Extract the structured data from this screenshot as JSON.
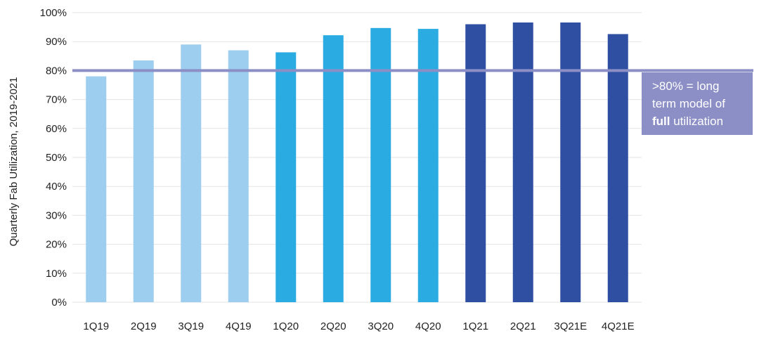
{
  "chart_data": {
    "type": "bar",
    "categories": [
      "1Q19",
      "2Q19",
      "3Q19",
      "4Q19",
      "1Q20",
      "2Q20",
      "3Q20",
      "4Q20",
      "1Q21",
      "2Q21",
      "3Q21E",
      "4Q21E"
    ],
    "values": [
      78,
      83.5,
      89,
      87,
      86.3,
      92.2,
      94.7,
      94.4,
      96,
      96.6,
      96.6,
      92.6
    ],
    "bar_colors": [
      "#9dcef0",
      "#9dcef0",
      "#9dcef0",
      "#9dcef0",
      "#2aace2",
      "#2aace2",
      "#2aace2",
      "#2aace2",
      "#2f4fa2",
      "#2f4fa2",
      "#2f4fa2",
      "#2f4fa2"
    ],
    "ylabel": "Quarterly Fab Utilization, 2019-2021",
    "ylim": [
      0,
      100
    ],
    "yticks": [
      0,
      10,
      20,
      30,
      40,
      50,
      60,
      70,
      80,
      90,
      100
    ],
    "ytick_labels": [
      "0%",
      "10%",
      "20%",
      "30%",
      "40%",
      "50%",
      "60%",
      "70%",
      "80%",
      "90%",
      "100%"
    ],
    "grid": true,
    "reference_line": {
      "value": 80,
      "color": "#8c8fc6"
    },
    "annotation": {
      "line1": ">80% = long",
      "line2": "term model of",
      "line3_bold": "full",
      "line3_rest": " utilization",
      "background": "#8c8fc6"
    }
  }
}
